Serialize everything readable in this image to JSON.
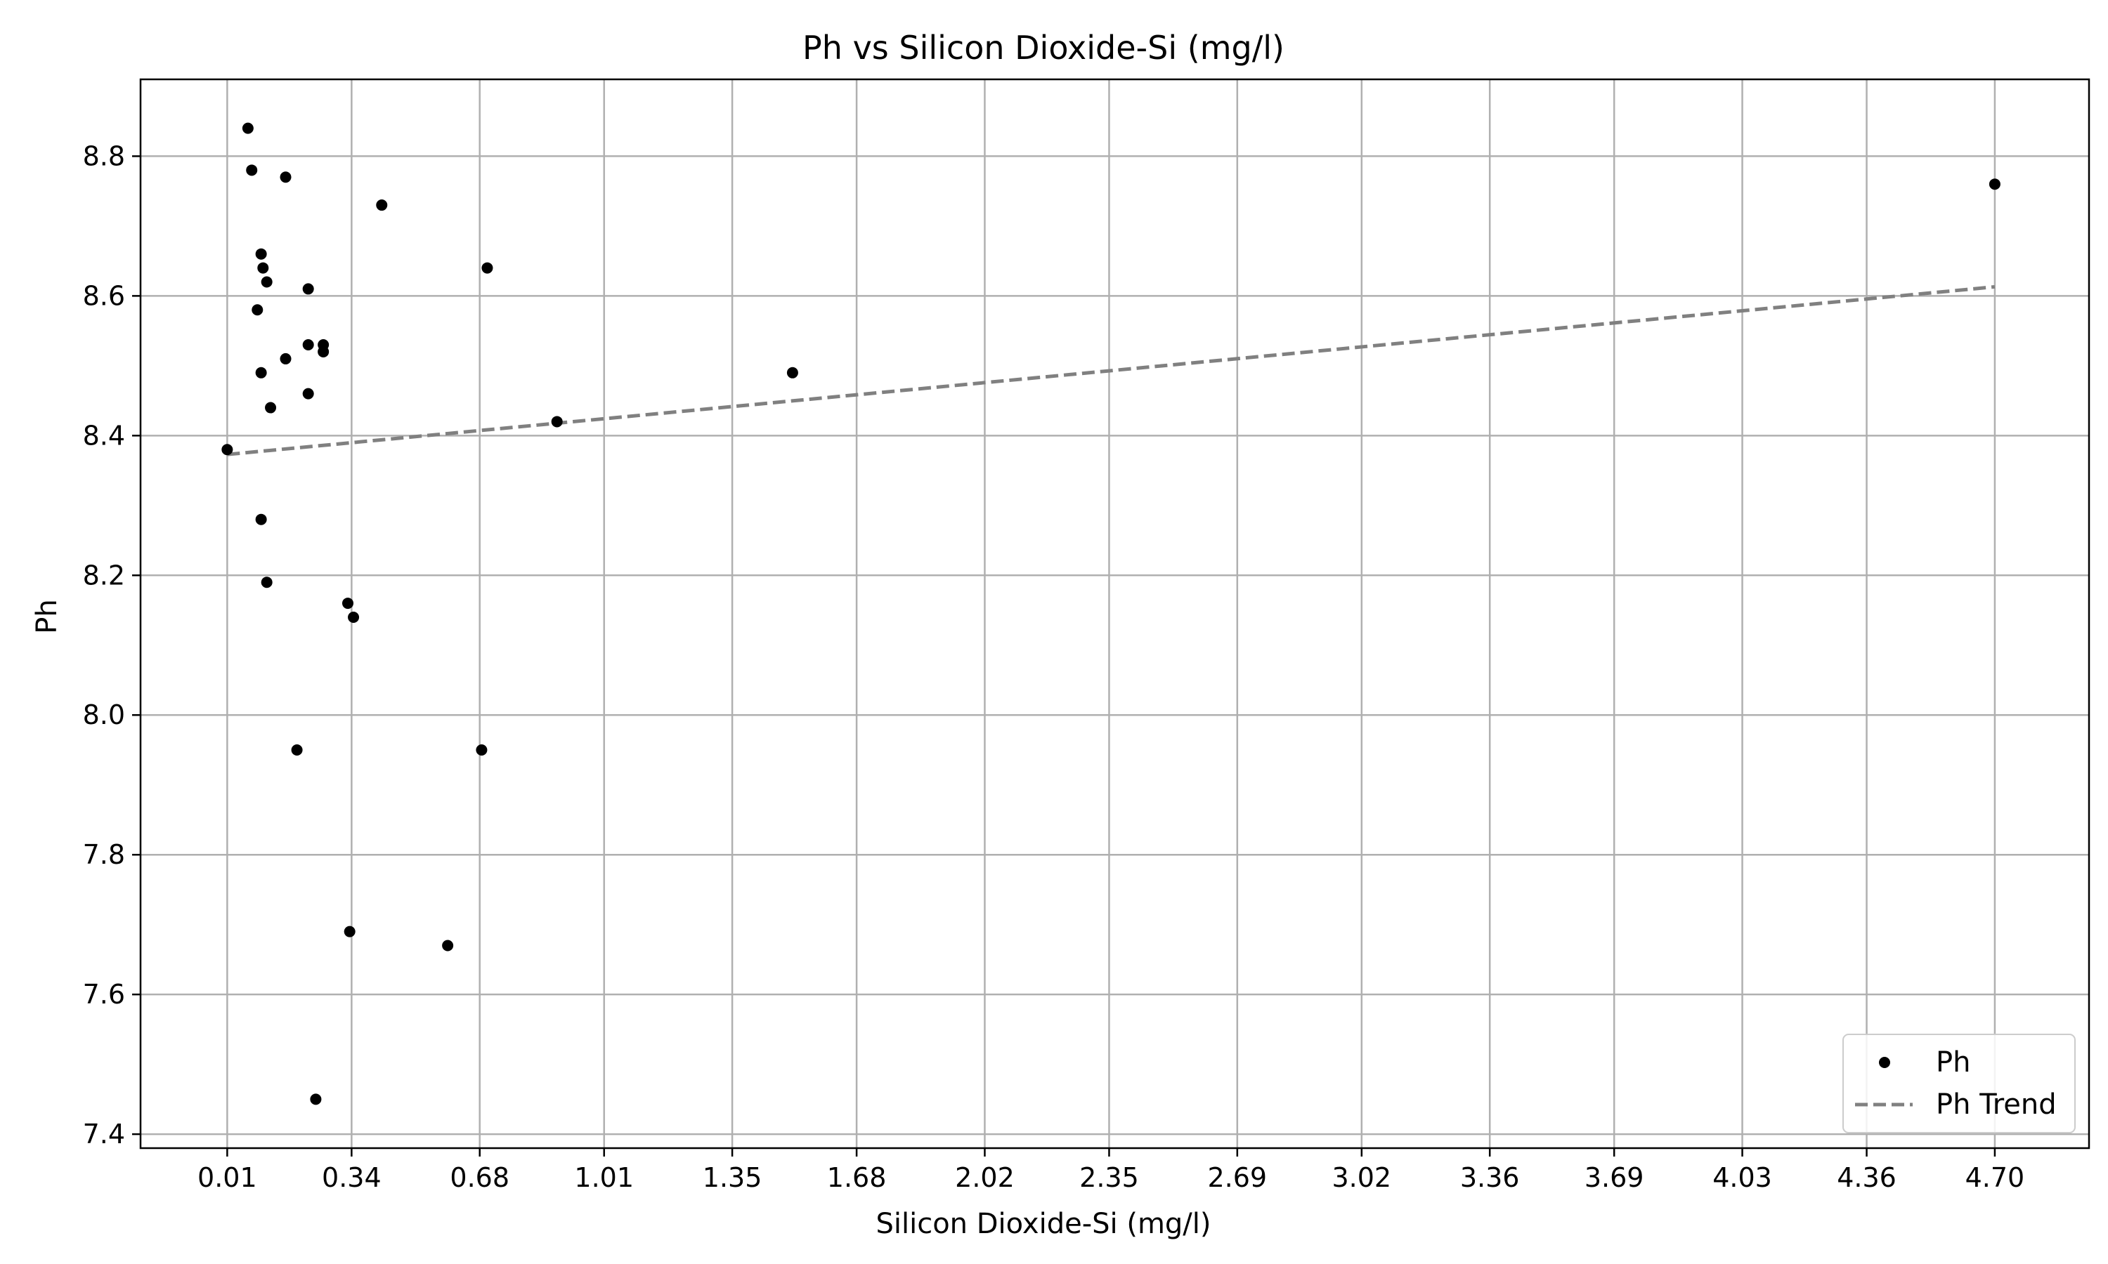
{
  "chart_data": {
    "type": "scatter",
    "title": "Ph vs Silicon Dioxide-Si (mg/l)",
    "xlabel": "Silicon Dioxide-Si (mg/l)",
    "ylabel": "Ph",
    "xlim": [
      -0.22,
      4.95
    ],
    "ylim": [
      7.38,
      8.91
    ],
    "xticks": [
      0.01,
      0.34,
      0.68,
      1.01,
      1.35,
      1.68,
      2.02,
      2.35,
      2.69,
      3.02,
      3.36,
      3.69,
      4.03,
      4.36,
      4.7
    ],
    "xtick_labels": [
      "0.01",
      "0.34",
      "0.68",
      "1.01",
      "1.35",
      "1.68",
      "2.02",
      "2.35",
      "2.69",
      "3.02",
      "3.36",
      "3.69",
      "4.03",
      "4.36",
      "4.70"
    ],
    "yticks": [
      7.4,
      7.6,
      7.8,
      8.0,
      8.2,
      8.4,
      8.6,
      8.8
    ],
    "ytick_labels": [
      "7.4",
      "7.6",
      "7.8",
      "8.0",
      "8.2",
      "8.4",
      "8.6",
      "8.8"
    ],
    "grid": true,
    "legend_position": "bottom-right",
    "series": [
      {
        "name": "Ph",
        "kind": "scatter",
        "color": "#000000",
        "points": [
          {
            "x": 0.01,
            "y": 8.38
          },
          {
            "x": 0.065,
            "y": 8.84
          },
          {
            "x": 0.075,
            "y": 8.78
          },
          {
            "x": 0.1,
            "y": 8.66
          },
          {
            "x": 0.105,
            "y": 8.64
          },
          {
            "x": 0.115,
            "y": 8.62
          },
          {
            "x": 0.09,
            "y": 8.58
          },
          {
            "x": 0.1,
            "y": 8.49
          },
          {
            "x": 0.125,
            "y": 8.44
          },
          {
            "x": 0.1,
            "y": 8.28
          },
          {
            "x": 0.115,
            "y": 8.19
          },
          {
            "x": 0.165,
            "y": 8.77
          },
          {
            "x": 0.165,
            "y": 8.51
          },
          {
            "x": 0.195,
            "y": 7.95
          },
          {
            "x": 0.225,
            "y": 8.61
          },
          {
            "x": 0.225,
            "y": 8.53
          },
          {
            "x": 0.225,
            "y": 8.46
          },
          {
            "x": 0.245,
            "y": 7.45
          },
          {
            "x": 0.265,
            "y": 8.53
          },
          {
            "x": 0.265,
            "y": 8.52
          },
          {
            "x": 0.33,
            "y": 8.16
          },
          {
            "x": 0.335,
            "y": 7.69
          },
          {
            "x": 0.345,
            "y": 8.14
          },
          {
            "x": 0.42,
            "y": 8.73
          },
          {
            "x": 0.595,
            "y": 7.67
          },
          {
            "x": 0.685,
            "y": 7.95
          },
          {
            "x": 0.7,
            "y": 8.64
          },
          {
            "x": 0.885,
            "y": 8.42
          },
          {
            "x": 1.51,
            "y": 8.49
          },
          {
            "x": 4.7,
            "y": 8.76
          }
        ]
      },
      {
        "name": "Ph Trend",
        "kind": "line",
        "color": "#808080",
        "dash": "dashed",
        "points": [
          {
            "x": 0.01,
            "y": 8.373
          },
          {
            "x": 4.7,
            "y": 8.613
          }
        ]
      }
    ]
  }
}
